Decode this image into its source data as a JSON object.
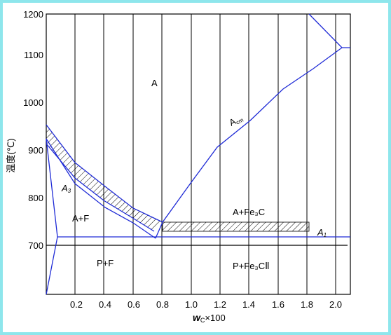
{
  "y_axis": {
    "label": "温度(℃)",
    "ticks": [
      "700",
      "800",
      "900",
      "1000",
      "1100",
      "1200"
    ]
  },
  "x_axis": {
    "ticks": [
      "0.2",
      "0.4",
      "0.6",
      "0.8",
      "1.0",
      "1.2",
      "1.4",
      "1.6",
      "1.8",
      "2.0"
    ],
    "label_symbol": "w",
    "label_sub": "C",
    "label_rest": "×100"
  },
  "regions": {
    "austenite": "A",
    "austenite_ferrite": "A+F",
    "pearlite_ferrite": "P+F",
    "austenite_cementite": "A+Fe₃C",
    "pearlite_cementite": "P+Fe₃CⅡ"
  },
  "lines": {
    "a3": {
      "main": "A",
      "sub": "3"
    },
    "a1": {
      "main": "A",
      "sub": "1"
    },
    "acm": {
      "main": "A",
      "sub": "cm"
    }
  },
  "colors": {
    "frame": "#8ee6ec",
    "grid": "#000000",
    "phase_line": "#1f2bd6",
    "hatch": "#000000"
  }
}
